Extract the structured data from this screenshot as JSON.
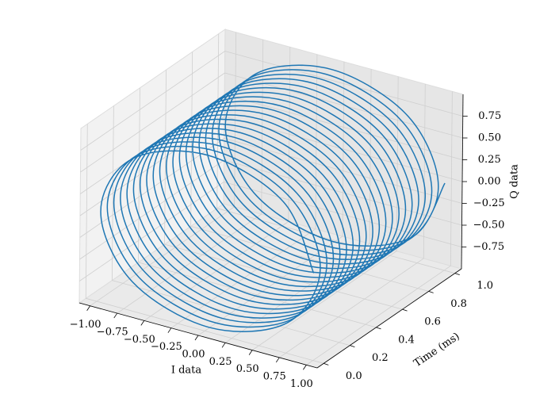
{
  "chart_data": {
    "type": "line3d",
    "xlabel": "I data",
    "ylabel": "Time (ms)",
    "zlabel": "Q data",
    "xlim": [
      -1.1,
      1.1
    ],
    "ylim": [
      -0.05,
      1.05
    ],
    "zlim": [
      -1.0,
      1.0
    ],
    "xticks": [
      {
        "value": -1,
        "label": "−1.00"
      },
      {
        "value": -0.75,
        "label": "−0.75"
      },
      {
        "value": -0.5,
        "label": "−0.50"
      },
      {
        "value": -0.25,
        "label": "−0.25"
      },
      {
        "value": 0,
        "label": "0.00"
      },
      {
        "value": 0.25,
        "label": "0.25"
      },
      {
        "value": 0.5,
        "label": "0.50"
      },
      {
        "value": 0.75,
        "label": "0.75"
      },
      {
        "value": 1,
        "label": "1.00"
      }
    ],
    "yticks": [
      {
        "value": 0,
        "label": "0.0"
      },
      0.2,
      0.4,
      0.6,
      0.8,
      {
        "value": 1,
        "label": "1.0"
      }
    ],
    "zticks": [
      {
        "value": -0.75,
        "label": "−0.75"
      },
      {
        "value": -0.5,
        "label": "−0.50"
      },
      {
        "value": -0.25,
        "label": "−0.25"
      },
      {
        "value": 0,
        "label": "0.00"
      },
      {
        "value": 0.25,
        "label": "0.25"
      },
      {
        "value": 0.5,
        "label": "0.50"
      },
      {
        "value": 0.75,
        "label": "0.75"
      }
    ],
    "grid": true,
    "series": [
      {
        "color": "#1f77b4",
        "x": [
          1,
          0.71,
          0,
          -0.71,
          -1,
          -0.71,
          0,
          0.71,
          1,
          0.71,
          0,
          -0.71,
          -1,
          -0.71,
          0,
          0.71,
          1,
          0.71,
          0,
          -0.71,
          -1,
          -0.71,
          0,
          0.71,
          1,
          0.71,
          0,
          -0.71,
          -1,
          -0.71,
          0,
          0.71,
          1,
          0.71,
          0,
          -0.71,
          -1,
          -0.71,
          0,
          0.71,
          1,
          0.71,
          0,
          -0.71,
          -1,
          -0.71,
          0,
          0.71,
          1,
          0.71,
          0,
          -0.71,
          -1,
          -0.71,
          0,
          0.71,
          1,
          0.71,
          0,
          -0.71,
          -1,
          -0.71,
          0,
          0.71,
          1,
          0.71,
          0,
          -0.71,
          -1,
          -0.71,
          0,
          0.71,
          1,
          0.71,
          0,
          -0.71,
          -1,
          -0.71,
          0,
          0.71,
          1,
          0.71,
          0,
          -0.71,
          -1,
          -0.71,
          0,
          0.71,
          1,
          0.71,
          0,
          -0.71,
          -1,
          -0.71,
          0,
          0.71,
          1,
          0.71,
          0,
          -0.71,
          -1,
          -0.71,
          0,
          0.71,
          1,
          0.71,
          0,
          -0.71,
          -1,
          -0.71,
          0,
          0.71,
          1,
          0.71,
          0,
          -0.71,
          -1,
          -0.71,
          0,
          0.71,
          1,
          0.71,
          0,
          -0.71,
          -1,
          -0.71,
          0,
          0.71,
          1,
          0.71,
          0,
          -0.71,
          -1,
          -0.71,
          0,
          0.71,
          1,
          0.71,
          0,
          -0.71,
          -1,
          -0.71,
          0,
          0.71,
          1,
          0.71,
          0,
          -0.71,
          -1,
          -0.71,
          0,
          0.71,
          1,
          0.71,
          0,
          -0.71,
          -1,
          -0.71,
          0,
          0.71,
          1
        ],
        "y": [
          0,
          0.00625,
          0.0125,
          0.01875,
          0.025,
          0.03125,
          0.0375,
          0.04375,
          0.05,
          0.05625,
          0.0625,
          0.06875,
          0.075,
          0.08125,
          0.0875,
          0.09375,
          0.1,
          0.10625,
          0.1125,
          0.11875,
          0.125,
          0.13125,
          0.1375,
          0.14375,
          0.15,
          0.15625,
          0.1625,
          0.16875,
          0.175,
          0.18125,
          0.1875,
          0.19375,
          0.2,
          0.20625,
          0.2125,
          0.21875,
          0.225,
          0.23125,
          0.2375,
          0.24375,
          0.25,
          0.25625,
          0.2625,
          0.26875,
          0.275,
          0.28125,
          0.2875,
          0.29375,
          0.3,
          0.30625,
          0.3125,
          0.31875,
          0.325,
          0.33125,
          0.3375,
          0.34375,
          0.35,
          0.35625,
          0.3625,
          0.36875,
          0.375,
          0.38125,
          0.3875,
          0.39375,
          0.4,
          0.40625,
          0.4125,
          0.41875,
          0.425,
          0.43125,
          0.4375,
          0.44375,
          0.45,
          0.45625,
          0.4625,
          0.46875,
          0.475,
          0.48125,
          0.4875,
          0.49375,
          0.5,
          0.50625,
          0.5125,
          0.51875,
          0.525,
          0.53125,
          0.5375,
          0.54375,
          0.55,
          0.55625,
          0.5625,
          0.56875,
          0.575,
          0.58125,
          0.5875,
          0.59375,
          0.6,
          0.60625,
          0.6125,
          0.61875,
          0.625,
          0.63125,
          0.6375,
          0.64375,
          0.65,
          0.65625,
          0.6625,
          0.66875,
          0.675,
          0.68125,
          0.6875,
          0.69375,
          0.7,
          0.70625,
          0.7125,
          0.71875,
          0.725,
          0.73125,
          0.7375,
          0.74375,
          0.75,
          0.75625,
          0.7625,
          0.76875,
          0.775,
          0.78125,
          0.7875,
          0.79375,
          0.8,
          0.80625,
          0.8125,
          0.81875,
          0.825,
          0.83125,
          0.8375,
          0.84375,
          0.85,
          0.85625,
          0.8625,
          0.86875,
          0.875,
          0.88125,
          0.8875,
          0.89375,
          0.9,
          0.90625,
          0.9125,
          0.91875,
          0.925,
          0.93125,
          0.9375,
          0.94375,
          0.95,
          0.95625,
          0.9625,
          0.96875,
          0.975,
          0.98125,
          0.9875,
          0.99375,
          1
        ],
        "z": [
          0,
          0.71,
          1,
          0.71,
          0,
          -0.71,
          -1,
          -0.71,
          0,
          0.71,
          1,
          0.71,
          0,
          -0.71,
          -1,
          -0.71,
          0,
          0.71,
          1,
          0.71,
          0,
          -0.71,
          -1,
          -0.71,
          0,
          0.71,
          1,
          0.71,
          0,
          -0.71,
          -1,
          -0.71,
          0,
          0.71,
          1,
          0.71,
          0,
          -0.71,
          -1,
          -0.71,
          0,
          0.71,
          1,
          0.71,
          0,
          -0.71,
          -1,
          -0.71,
          0,
          0.71,
          1,
          0.71,
          0,
          -0.71,
          -1,
          -0.71,
          0,
          0.71,
          1,
          0.71,
          0,
          -0.71,
          -1,
          -0.71,
          0,
          0.71,
          1,
          0.71,
          0,
          -0.71,
          -1,
          -0.71,
          0,
          0.71,
          1,
          0.71,
          0,
          -0.71,
          -1,
          -0.71,
          0,
          0.71,
          1,
          0.71,
          0,
          -0.71,
          -1,
          -0.71,
          0,
          0.71,
          1,
          0.71,
          0,
          -0.71,
          -1,
          -0.71,
          0,
          0.71,
          1,
          0.71,
          0,
          -0.71,
          -1,
          -0.71,
          0,
          0.71,
          1,
          0.71,
          0,
          -0.71,
          -1,
          -0.71,
          0,
          0.71,
          1,
          0.71,
          0,
          -0.71,
          -1,
          -0.71,
          0,
          0.71,
          1,
          0.71,
          0,
          -0.71,
          -1,
          -0.71,
          0,
          0.71,
          1,
          0.71,
          0,
          -0.71,
          -1,
          -0.71,
          0,
          0.71,
          1,
          0.71,
          0,
          -0.71,
          -1,
          -0.71,
          0,
          0.71,
          1,
          0.71,
          0,
          -0.71,
          -1,
          -0.71,
          0,
          0.71,
          1,
          0.71,
          0,
          -0.71,
          -1,
          -0.71,
          0
        ]
      }
    ]
  }
}
